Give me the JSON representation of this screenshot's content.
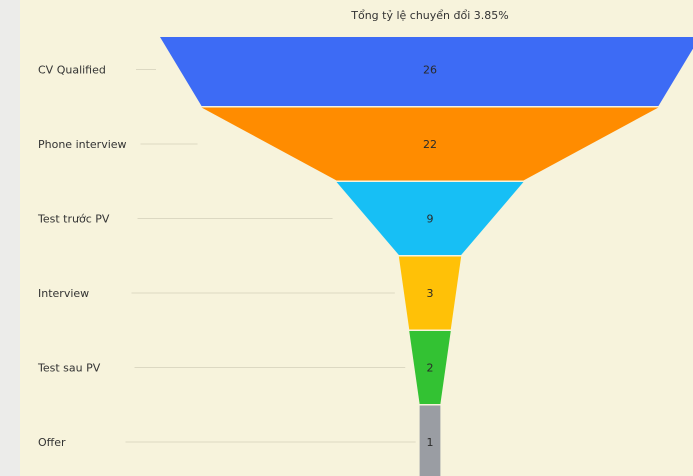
{
  "chart_data": {
    "type": "funnel",
    "title": "Tổng tỷ lệ chuyển đổi 3.85%",
    "stages": [
      {
        "label": "CV Qualified",
        "value": 26,
        "color": "#3d6bf5"
      },
      {
        "label": "Phone interview",
        "value": 22,
        "color": "#ff8c00"
      },
      {
        "label": "Test trước PV",
        "value": 9,
        "color": "#17bff5"
      },
      {
        "label": "Interview",
        "value": 3,
        "color": "#ffc107"
      },
      {
        "label": "Test sau PV",
        "value": 2,
        "color": "#33c233"
      },
      {
        "label": "Offer",
        "value": 1,
        "color": "#9a9da3"
      }
    ]
  }
}
